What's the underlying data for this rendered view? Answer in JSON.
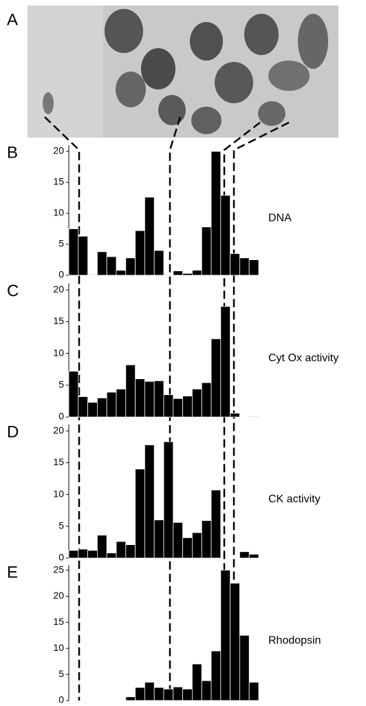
{
  "photo_label": "A",
  "chart_data": [
    {
      "type": "bar",
      "panel": "B",
      "ylim": [
        0,
        21
      ],
      "yticks": [
        0,
        5,
        10,
        15,
        20
      ],
      "series": [
        {
          "name": "DNA",
          "color": "#000000",
          "values": [
            7.5,
            6.3,
            0.1,
            3.8,
            3.0,
            0.8,
            2.8,
            7.2,
            12.6,
            4.0,
            0.1,
            0.7,
            0.3,
            0.8,
            7.8,
            20,
            12.9,
            3.5,
            2.8,
            2.5
          ]
        }
      ]
    },
    {
      "type": "bar",
      "panel": "C",
      "ylim": [
        0,
        21
      ],
      "yticks": [
        0,
        5,
        10,
        15,
        20
      ],
      "series": [
        {
          "name": "Cyt Ox activity",
          "color": "#000000",
          "values": [
            7.2,
            3.2,
            2.3,
            3.0,
            3.9,
            4.4,
            8.2,
            6.0,
            5.6,
            5.7,
            3.5,
            2.9,
            3.3,
            4.4,
            5.4,
            12.3,
            17.4,
            0.6,
            0,
            0.1
          ]
        }
      ]
    },
    {
      "type": "bar",
      "panel": "D",
      "ylim": [
        0,
        21
      ],
      "yticks": [
        0,
        5,
        10,
        15,
        20
      ],
      "series": [
        {
          "name": "CK activity",
          "color": "#000000",
          "values": [
            1.2,
            1.4,
            1.2,
            3.6,
            0.8,
            2.6,
            2.1,
            14,
            17.8,
            6.0,
            18.3,
            5.6,
            3.2,
            4.0,
            5.9,
            10.7,
            0,
            0,
            1.0,
            0.6
          ]
        }
      ]
    },
    {
      "type": "bar",
      "panel": "E",
      "ylim": [
        0,
        26
      ],
      "yticks": [
        0,
        5,
        10,
        15,
        20,
        25
      ],
      "series": [
        {
          "name": "Rhodopsin",
          "color": "#000000",
          "values": [
            0,
            0,
            0,
            0,
            0,
            0.1,
            0.7,
            2.5,
            3.5,
            2.5,
            2.2,
            2.6,
            2.2,
            7.0,
            3.8,
            9.5,
            25,
            22.5,
            12.5,
            3.5
          ]
        }
      ]
    }
  ]
}
